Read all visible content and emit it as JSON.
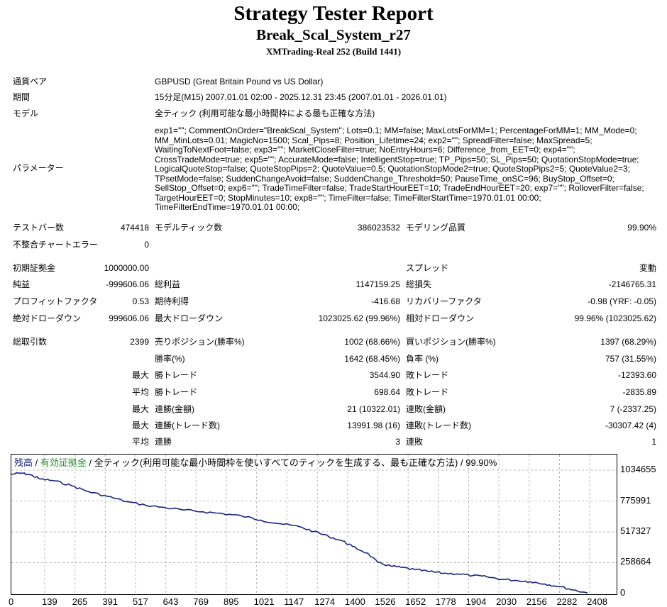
{
  "header": {
    "title": "Strategy Tester Report",
    "ea_name": "Break_Scal_System_r27",
    "server": "XMTrading-Real 252 (Build 1441)"
  },
  "info": {
    "symbol_label": "通貨ペア",
    "symbol_value": "GBPUSD (Great Britain Pound vs US Dollar)",
    "period_label": "期間",
    "period_value": "15分足(M15) 2007.01.01 02:00 - 2025.12.31 23:45 (2007.01.01 - 2026.01.01)",
    "model_label": "モデル",
    "model_value": "全ティック (利用可能な最小時間枠による最も正確な方法)",
    "params_label": "パラメーター",
    "params_value": "exp1=\"\"; CommentOnOrder=\"BreakScal_System\"; Lots=0.1; MM=false; MaxLotsForMM=1; PercentageForMM=1; MM_Mode=0; MM_MinLots=0.01; MagicNo=1500; Scal_Pips=8; Position_Lifetime=24; exp2=\"\"; SpreadFilter=false; MaxSpread=5; WaitingToNextFoot=false; exp3=\"\"; MarketCloseFilter=true; NoEntryHours=6; Difference_from_EET=0; exp4=\"\"; CrossTradeMode=true; exp5=\"\"; AccurateMode=false; IntelligentStop=true; TP_Pips=50; SL_Pips=50; QuotationStopMode=true; LogicalQuoteStop=false; QuoteStopPips=2; QuoteValue=0.5; QuotationStopMode2=true; QuoteStopPips2=5; QuoteValue2=3; TPsetMode=false; SuddenChangeAvoid=false; SuddenChange_Threshold=50; PauseTime_onSC=96; BuyStop_Offset=0; SellStop_Offset=0; exp6=\"\"; TradeTimeFilter=false; TradeStartHourEET=10; TradeEndHourEET=20; exp7=\"\"; RolloverFilter=false; TargetHourEET=0; StopMinutes=10; exp8=\"\"; TimeFilter=false; TimeFilterStartTime=1970.01.01 00:00; TimeFilterEndTime=1970.01.01 00:00;"
  },
  "stats": {
    "bars_label": "テストバー数",
    "bars_value": "474418",
    "ticks_label": "モデルティック数",
    "ticks_value": "386023532",
    "quality_label": "モデリング品質",
    "quality_value": "99.90%",
    "mismatch_label": "不整合チャートエラー",
    "mismatch_value": "0",
    "deposit_label": "初期証拠金",
    "deposit_value": "1000000.00",
    "spread_label": "スプレッド",
    "spread_value": "変動",
    "net_label": "純益",
    "net_value": "-999606.06",
    "gross_profit_label": "総利益",
    "gross_profit_value": "1147159.25",
    "gross_loss_label": "総損失",
    "gross_loss_value": "-2146765.31",
    "pf_label": "プロフィットファクタ",
    "pf_value": "0.53",
    "expected_label": "期待利得",
    "expected_value": "-416.68",
    "recovery_label": "リカバリーファクタ",
    "recovery_value": "-0.98 (YRF: -0.05)",
    "abs_dd_label": "絶対ドローダウン",
    "abs_dd_value": "999606.06",
    "max_dd_label": "最大ドローダウン",
    "max_dd_value": "1023025.62 (99.96%)",
    "rel_dd_label": "相対ドローダウン",
    "rel_dd_value": "99.96% (1023025.62)",
    "trades_label": "総取引数",
    "trades_value": "2399",
    "short_label": "売りポジション(勝率%)",
    "short_value": "1002 (68.66%)",
    "long_label": "買いポジション(勝率%)",
    "long_value": "1397 (68.29%)",
    "winrate_label": "勝率(%)",
    "winrate_value": "1642 (68.45%)",
    "lossrate_label": "負率 (%)",
    "lossrate_value": "757 (31.55%)",
    "max_label": "最大",
    "avg_label": "平均",
    "largest_win_label": "勝トレード",
    "largest_win_value": "3544.90",
    "largest_loss_label": "敗トレード",
    "largest_loss_value": "-12393.60",
    "avg_win_label": "勝トレード",
    "avg_win_value": "698.64",
    "avg_loss_label": "敗トレード",
    "avg_loss_value": "-2835.89",
    "max_consec_win_label": "連勝(金額)",
    "max_consec_win_value": "21 (10322.01)",
    "max_consec_loss_label": "連敗(金額)",
    "max_consec_loss_value": "7 (-2337.25)",
    "max_consec_profit_label": "連勝(トレード数)",
    "max_consec_profit_value": "13991.98 (16)",
    "max_consec_lossamt_label": "連敗(トレード数)",
    "max_consec_lossamt_value": "-30307.42 (4)",
    "avg_consec_win_label": "連勝",
    "avg_consec_win_value": "3",
    "avg_consec_loss_label": "連敗",
    "avg_consec_loss_value": "1"
  },
  "legend": {
    "balance": "残高",
    "sep1": " / ",
    "equity": "有効証拠金",
    "rest": " / 全ティック(利用可能な最小時間枠を使いすべてのティックを生成する、最も正確な方法) / 99.90%"
  },
  "colors": {
    "balance": "#1a237e",
    "equity": "#2e8b2e",
    "grid": "#b8b8b8"
  },
  "chart_data": {
    "type": "line",
    "title": "",
    "xlabel": "",
    "ylabel": "",
    "xlim": [
      0,
      2520
    ],
    "ylim": [
      0,
      1034655
    ],
    "x_ticks": [
      0,
      139,
      265,
      391,
      517,
      643,
      769,
      895,
      1021,
      1147,
      1274,
      1400,
      1526,
      1652,
      1778,
      1904,
      2030,
      2156,
      2282,
      2408
    ],
    "y_ticks": [
      1034655,
      775991,
      517327,
      258664,
      0
    ],
    "grid": true,
    "series": [
      {
        "name": "残高",
        "x": [
          0,
          40,
          80,
          120,
          180,
          250,
          320,
          400,
          480,
          560,
          640,
          720,
          800,
          880,
          960,
          1040,
          1120,
          1200,
          1260,
          1320,
          1380,
          1420,
          1480,
          1526,
          1580,
          1620,
          1680,
          1740,
          1800,
          1860,
          1920,
          1980,
          2040,
          2100,
          2160,
          2220,
          2280,
          2340,
          2399
        ],
        "y": [
          1000000,
          1010000,
          995000,
          960000,
          945000,
          905000,
          855000,
          815000,
          770000,
          740000,
          720000,
          700000,
          685000,
          670000,
          650000,
          615000,
          585000,
          560000,
          520000,
          480000,
          440000,
          395000,
          340000,
          260000,
          230000,
          220000,
          200000,
          185000,
          170000,
          165000,
          150000,
          140000,
          120000,
          110000,
          100000,
          80000,
          60000,
          30000,
          5000
        ]
      }
    ]
  }
}
